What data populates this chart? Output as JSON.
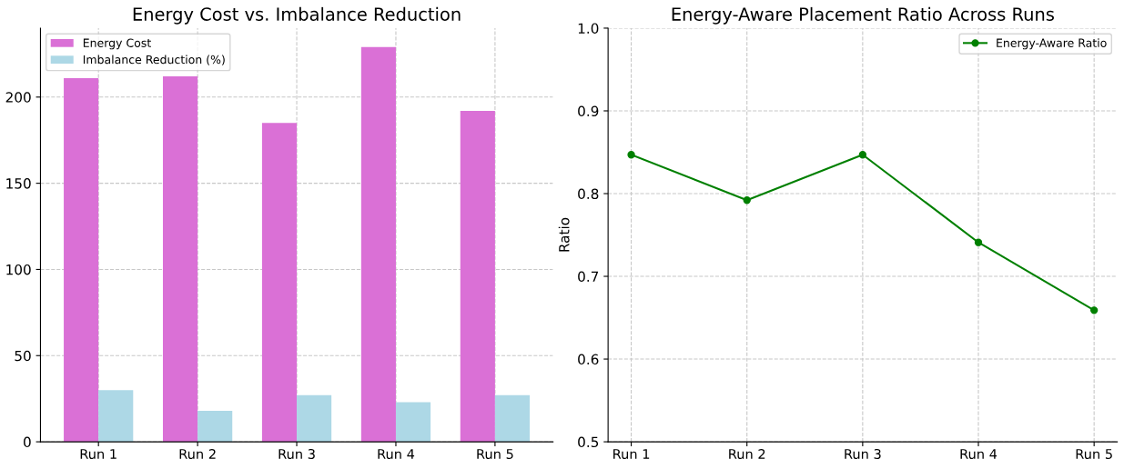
{
  "chart_data": [
    {
      "type": "bar",
      "title": "Energy Cost vs. Imbalance Reduction",
      "categories": [
        "Run 1",
        "Run 2",
        "Run 3",
        "Run 4",
        "Run 5"
      ],
      "series": [
        {
          "name": "Energy Cost",
          "color": "#da70d6",
          "values": [
            211,
            212,
            185,
            229,
            192
          ]
        },
        {
          "name": "Imbalance Reduction (%)",
          "color": "#add8e6",
          "values": [
            30,
            18,
            27,
            23,
            27
          ]
        }
      ],
      "ylim": [
        0,
        240
      ],
      "yticks": [
        0,
        50,
        100,
        150,
        200
      ],
      "grid": true,
      "legend": "top left"
    },
    {
      "type": "line",
      "title": "Energy-Aware Placement Ratio Across Runs",
      "ylabel": "Ratio",
      "categories": [
        "Run 1",
        "Run 2",
        "Run 3",
        "Run 4",
        "Run 5"
      ],
      "series": [
        {
          "name": "Energy-Aware Ratio",
          "color": "#008000",
          "values": [
            0.847,
            0.792,
            0.847,
            0.741,
            0.659
          ]
        }
      ],
      "ylim": [
        0.5,
        1.0
      ],
      "yticks": [
        0.5,
        0.6,
        0.7,
        0.8,
        0.9,
        {
          "value": 1.0,
          "label": "1.0"
        }
      ],
      "grid": true,
      "legend": "top right",
      "marker": "circle"
    }
  ]
}
